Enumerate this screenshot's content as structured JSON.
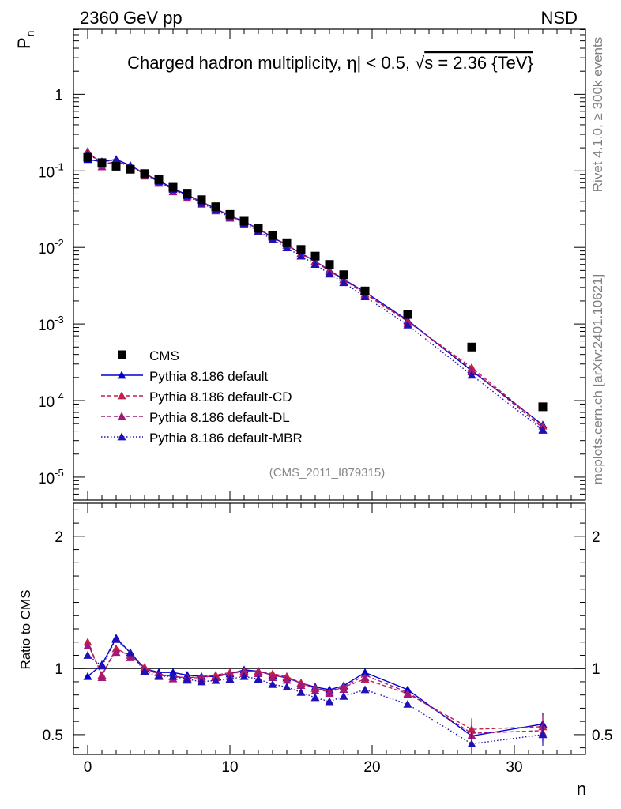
{
  "header": {
    "left": "2360 GeV pp",
    "right": "NSD"
  },
  "side_text": {
    "rivet": "Rivet 4.1.0, ≥ 300k events",
    "mcplots": "mcplots.cern.ch [arXiv:2401.10621]"
  },
  "chart_data": {
    "type": "line",
    "title": "Charged hadron multiplicity, |η| < 0.5, √s = 2.36 {TeV}",
    "title_parts": {
      "a": "Charged hadron multiplicity, ",
      "b": "η",
      "c": "| < 0.5, ",
      "d": "√",
      "e": "s = 2.36 {TeV}"
    },
    "analysis_id": "(CMS_2011_I879315)",
    "xlabel": "n",
    "ylabel_main": "P",
    "ylabel_main_sub": "n",
    "ylabel_ratio": "Ratio to CMS",
    "xlim": [
      -1,
      35
    ],
    "ylim_log_exp": [
      -5.3,
      0.85
    ],
    "ylim_ratio": [
      0.35,
      2.25
    ],
    "x_ticks": [
      "0",
      "10",
      "20",
      "30"
    ],
    "y_ticks_main": [
      {
        "base": "10",
        "exp": "-5"
      },
      {
        "base": "10",
        "exp": "-4"
      },
      {
        "base": "10",
        "exp": "-3"
      },
      {
        "base": "10",
        "exp": "-2"
      },
      {
        "base": "10",
        "exp": "-1"
      },
      {
        "base": "1",
        "exp": ""
      }
    ],
    "y_ticks_ratio": [
      "0.5",
      "1",
      "2"
    ],
    "x": [
      0,
      1,
      2,
      3,
      4,
      5,
      6,
      7,
      8,
      9,
      10,
      11,
      12,
      13,
      14,
      15,
      16,
      17,
      18,
      19.5,
      22.5,
      27,
      32
    ],
    "cms": [
      0.15,
      0.128,
      0.115,
      0.105,
      0.092,
      0.077,
      0.061,
      0.051,
      0.042,
      0.034,
      0.027,
      0.022,
      0.0178,
      0.0143,
      0.0115,
      0.0094,
      0.0077,
      0.006,
      0.0044,
      0.0027,
      0.00133,
      0.0005,
      8.3e-05
    ],
    "series": [
      {
        "name": "Pythia 8.186 default",
        "color": "#0000d0",
        "dash": "",
        "marker_dy": 0,
        "ratio": [
          0.94,
          1.03,
          1.23,
          1.12,
          1.0,
          0.97,
          0.97,
          0.95,
          0.94,
          0.94,
          0.96,
          0.99,
          0.98,
          0.95,
          0.93,
          0.89,
          0.86,
          0.84,
          0.87,
          0.97,
          0.84,
          0.49,
          0.58
        ]
      },
      {
        "name": "Pythia 8.186 default-CD",
        "color": "#c0204a",
        "dash": "5,3",
        "marker_dy": 0,
        "ratio": [
          1.2,
          0.95,
          1.15,
          1.1,
          1.01,
          0.95,
          0.94,
          0.93,
          0.93,
          0.95,
          0.97,
          0.98,
          0.98,
          0.96,
          0.94,
          0.89,
          0.85,
          0.82,
          0.86,
          0.92,
          0.81,
          0.54,
          0.56
        ]
      },
      {
        "name": "Pythia 8.186 default-DL",
        "color": "#a01878",
        "dash": "5,3",
        "marker_dy": 3,
        "ratio": [
          1.19,
          0.95,
          1.14,
          1.1,
          1.0,
          0.96,
          0.94,
          0.93,
          0.94,
          0.95,
          0.96,
          0.98,
          0.98,
          0.95,
          0.93,
          0.89,
          0.85,
          0.83,
          0.86,
          0.95,
          0.82,
          0.51,
          0.53
        ]
      },
      {
        "name": "Pythia 8.186 default-MBR",
        "color": "#2010b8",
        "dash": "1.5,2.5",
        "marker_dy": 0,
        "ratio": [
          1.1,
          1.02,
          1.22,
          1.12,
          0.98,
          0.94,
          0.94,
          0.92,
          0.9,
          0.91,
          0.92,
          0.94,
          0.92,
          0.88,
          0.86,
          0.82,
          0.78,
          0.75,
          0.79,
          0.84,
          0.73,
          0.43,
          0.5
        ]
      }
    ],
    "legend": {
      "data_label": "CMS",
      "placement": "lower-left"
    },
    "colors": {
      "data": "#000000",
      "reference_line": "#000000",
      "analysis_id": "#888888",
      "side_text": "#808080"
    }
  }
}
